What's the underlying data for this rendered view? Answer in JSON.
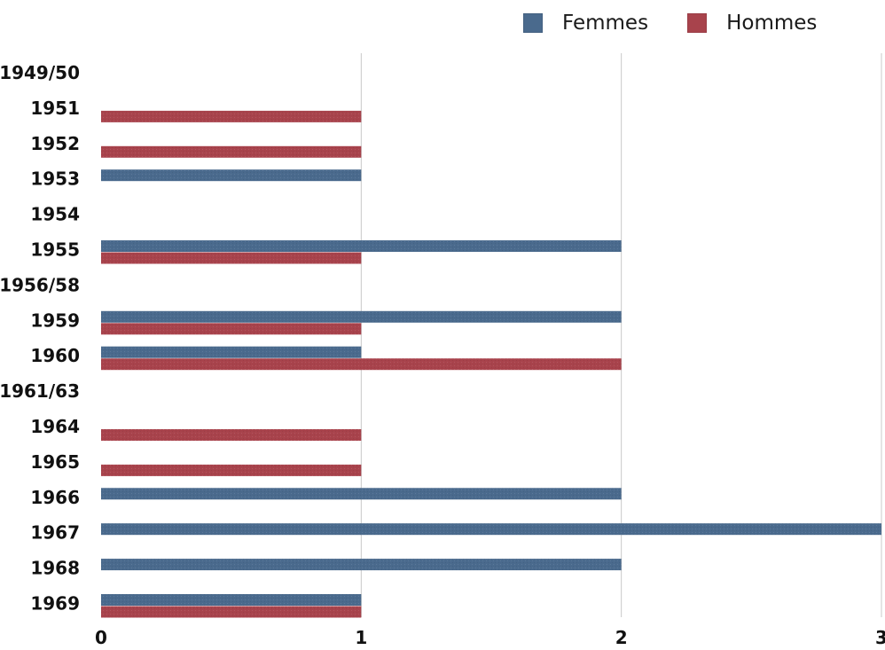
{
  "chart_data": {
    "type": "bar",
    "orientation": "horizontal",
    "categories": [
      "1949/50",
      "1951",
      "1952",
      "1953",
      "1954",
      "1955",
      "1956/58",
      "1959",
      "1960",
      "1961/63",
      "1964",
      "1965",
      "1966",
      "1967",
      "1968",
      "1969"
    ],
    "series": [
      {
        "name": "Femmes",
        "color": "#4a6a8d",
        "values": [
          0,
          0,
          0,
          1,
          0,
          2,
          0,
          2,
          1,
          0,
          0,
          0,
          2,
          3,
          2,
          1
        ]
      },
      {
        "name": "Hommes",
        "color": "#a8434c",
        "values": [
          0,
          1,
          1,
          0,
          0,
          1,
          0,
          1,
          2,
          0,
          1,
          1,
          0,
          0,
          0,
          1
        ]
      }
    ],
    "xlim": [
      0,
      3
    ],
    "x_ticks": [
      "0",
      "1",
      "2",
      "3"
    ],
    "grid": true,
    "legend_position": "top-right"
  }
}
